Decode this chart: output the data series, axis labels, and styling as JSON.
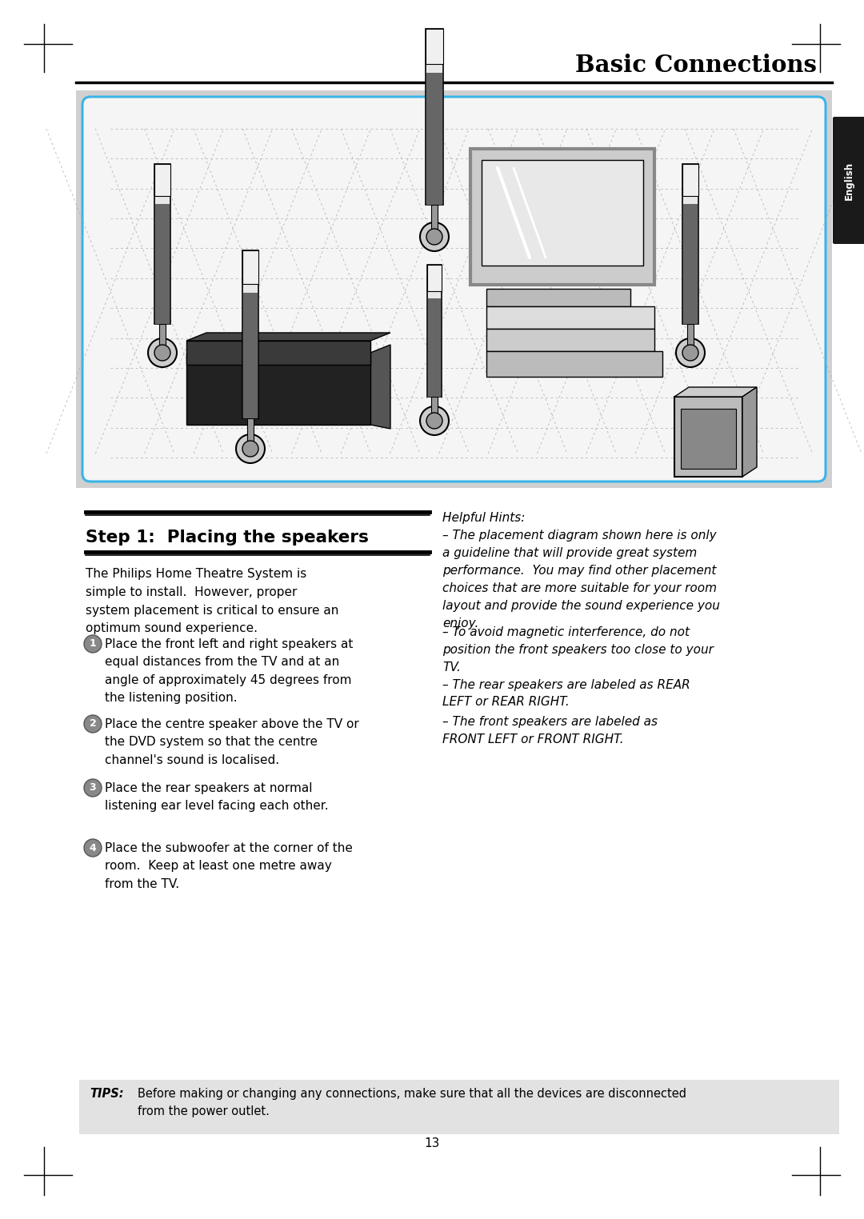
{
  "title": "Basic Connections",
  "section_title": "Step 1:  Placing the speakers",
  "bg_color": "#ffffff",
  "tab_color": "#1a1a1a",
  "tab_text": "English",
  "intro_text": "The Philips Home Theatre System is\nsimple to install.  However, proper\nsystem placement is critical to ensure an\noptimum sound experience.",
  "steps": [
    {
      "num": "1",
      "text": "Place the front left and right speakers at\nequal distances from the TV and at an\nangle of approximately 45 degrees from\nthe listening position."
    },
    {
      "num": "2",
      "text": "Place the centre speaker above the TV or\nthe DVD system so that the centre\nchannel's sound is localised."
    },
    {
      "num": "3",
      "text": "Place the rear speakers at normal\nlistening ear level facing each other."
    },
    {
      "num": "4",
      "text": "Place the subwoofer at the corner of the\nroom.  Keep at least one metre away\nfrom the TV."
    }
  ],
  "hints_title": "Helpful Hints:",
  "hints": [
    "– The placement diagram shown here is only\na guideline that will provide great system\nperformance.  You may find other placement\nchoices that are more suitable for your room\nlayout and provide the sound experience you\nenjoy.",
    "– To avoid magnetic interference, do not\nposition the front speakers too close to your\nTV.",
    "– The rear speakers are labeled as REAR\nLEFT or REAR RIGHT.",
    "– The front speakers are labeled as\nFRONT LEFT or FRONT RIGHT."
  ],
  "tips_label": "TIPS:",
  "tips_text": "Before making or changing any connections, make sure that all the devices are disconnected\nfrom the power outlet.",
  "page_number": "13",
  "image_area_bg": "#d0d0d0",
  "image_inner_bg": "#f5f5f5",
  "image_border_color": "#3ab4e8",
  "grid_color": "#aaaaaa"
}
